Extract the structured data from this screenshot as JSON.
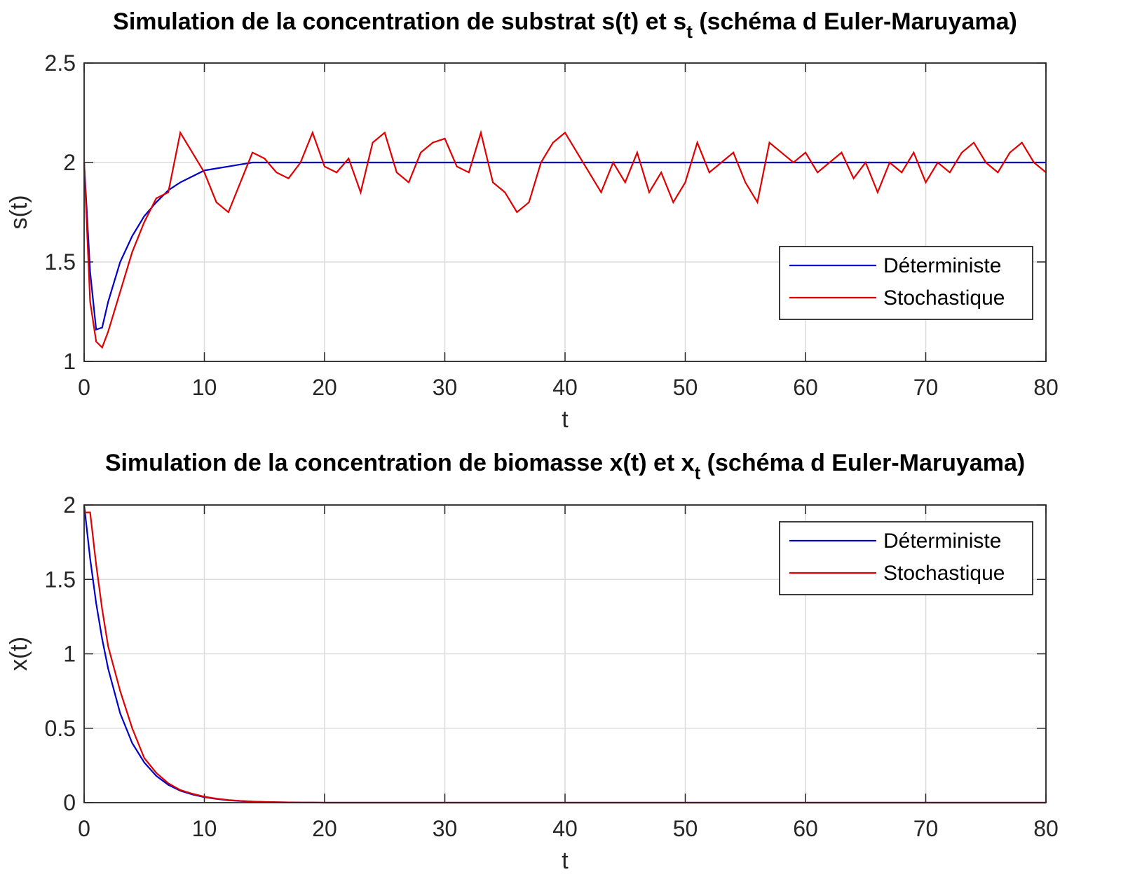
{
  "chart_data": [
    {
      "type": "line",
      "title_parts": [
        "Simulation de la concentration de substrat s(t) et s",
        "t",
        " (schéma d Euler-Maruyama)"
      ],
      "x_label": "t",
      "y_label": "s(t)",
      "x": [
        0,
        0.5,
        1,
        1.5,
        2,
        3,
        4,
        5,
        6,
        7,
        8,
        9,
        10,
        11,
        12,
        13,
        14,
        15,
        16,
        17,
        18,
        19,
        20,
        21,
        22,
        23,
        24,
        25,
        26,
        27,
        28,
        29,
        30,
        31,
        32,
        33,
        34,
        35,
        36,
        37,
        38,
        39,
        40,
        41,
        42,
        43,
        44,
        45,
        46,
        47,
        48,
        49,
        50,
        51,
        52,
        53,
        54,
        55,
        56,
        57,
        58,
        59,
        60,
        61,
        62,
        63,
        64,
        65,
        66,
        67,
        68,
        69,
        70,
        71,
        72,
        73,
        74,
        75,
        76,
        77,
        78,
        79,
        80
      ],
      "series": [
        {
          "name": "Déterministe",
          "color": "#0000cc",
          "values": [
            2,
            1.45,
            1.16,
            1.17,
            1.3,
            1.5,
            1.63,
            1.73,
            1.8,
            1.86,
            1.9,
            1.93,
            1.96,
            1.97,
            1.98,
            1.99,
            2,
            2,
            2,
            2,
            2,
            2,
            2,
            2,
            2,
            2,
            2,
            2,
            2,
            2,
            2,
            2,
            2,
            2,
            2,
            2,
            2,
            2,
            2,
            2,
            2,
            2,
            2,
            2,
            2,
            2,
            2,
            2,
            2,
            2,
            2,
            2,
            2,
            2,
            2,
            2,
            2,
            2,
            2,
            2,
            2,
            2,
            2,
            2,
            2,
            2,
            2,
            2,
            2,
            2,
            2,
            2,
            2,
            2,
            2,
            2,
            2,
            2,
            2,
            2,
            2,
            2,
            2
          ]
        },
        {
          "name": "Stochastique",
          "color": "#e00000",
          "values": [
            2,
            1.3,
            1.1,
            1.07,
            1.15,
            1.35,
            1.55,
            1.7,
            1.82,
            1.85,
            2.15,
            2.05,
            1.95,
            1.8,
            1.75,
            1.9,
            2.05,
            2.02,
            1.95,
            1.92,
            2.0,
            2.15,
            1.98,
            1.95,
            2.02,
            1.85,
            2.1,
            2.15,
            1.95,
            1.9,
            2.05,
            2.1,
            2.12,
            1.98,
            1.95,
            2.15,
            1.9,
            1.85,
            1.75,
            1.8,
            2.0,
            2.1,
            2.15,
            2.05,
            1.95,
            1.85,
            2.0,
            1.9,
            2.05,
            1.85,
            1.95,
            1.8,
            1.9,
            2.1,
            1.95,
            2.0,
            2.05,
            1.9,
            1.8,
            2.1,
            2.05,
            2.0,
            2.05,
            1.95,
            2.0,
            2.05,
            1.92,
            2.0,
            1.85,
            2.0,
            1.95,
            2.05,
            1.9,
            2.0,
            1.95,
            2.05,
            2.1,
            2.0,
            1.95,
            2.05,
            2.1,
            2.0,
            1.95
          ]
        }
      ],
      "xlim": [
        0,
        80
      ],
      "xticks": [
        0,
        10,
        20,
        30,
        40,
        50,
        60,
        70,
        80
      ],
      "ylim": [
        1,
        2.5
      ],
      "yticks": [
        1,
        1.5,
        2,
        2.5
      ],
      "grid": true,
      "legend": "southeast"
    },
    {
      "type": "line",
      "title_parts": [
        "Simulation de la concentration de biomasse x(t) et x",
        "t",
        " (schéma d Euler-Maruyama)"
      ],
      "x_label": "t",
      "y_label": "x(t)",
      "x": [
        0,
        0.5,
        1,
        1.5,
        2,
        3,
        4,
        5,
        6,
        7,
        8,
        9,
        10,
        11,
        12,
        13,
        14,
        15,
        16,
        17,
        18,
        19,
        20,
        21,
        22,
        23,
        24,
        25,
        26,
        27,
        28,
        29,
        30,
        31,
        32,
        33,
        34,
        35,
        36,
        37,
        38,
        39,
        40,
        41,
        42,
        43,
        44,
        45,
        46,
        47,
        48,
        49,
        50,
        51,
        52,
        53,
        54,
        55,
        56,
        57,
        58,
        59,
        60,
        61,
        62,
        63,
        64,
        65,
        66,
        67,
        68,
        69,
        70,
        71,
        72,
        73,
        74,
        75,
        76,
        77,
        78,
        79,
        80
      ],
      "series": [
        {
          "name": "Déterministe",
          "color": "#0000cc",
          "values": [
            2,
            1.64,
            1.34,
            1.1,
            0.9,
            0.6,
            0.4,
            0.27,
            0.18,
            0.12,
            0.08,
            0.055,
            0.037,
            0.025,
            0.016,
            0.011,
            0.007,
            0.005,
            0.003,
            0.002,
            0.001,
            0.001,
            0,
            0,
            0,
            0,
            0,
            0,
            0,
            0,
            0,
            0,
            0,
            0,
            0,
            0,
            0,
            0,
            0,
            0,
            0,
            0,
            0,
            0,
            0,
            0,
            0,
            0,
            0,
            0,
            0,
            0,
            0,
            0,
            0,
            0,
            0,
            0,
            0,
            0,
            0,
            0,
            0,
            0,
            0,
            0,
            0,
            0,
            0,
            0,
            0,
            0,
            0,
            0,
            0,
            0,
            0,
            0,
            0,
            0,
            0,
            0,
            0
          ]
        },
        {
          "name": "Stochastique",
          "color": "#e00000",
          "values": [
            1.95,
            1.95,
            1.6,
            1.3,
            1.05,
            0.75,
            0.5,
            0.3,
            0.2,
            0.13,
            0.085,
            0.06,
            0.04,
            0.027,
            0.018,
            0.012,
            0.008,
            0.005,
            0.003,
            0.002,
            0.001,
            0.001,
            0,
            0,
            0,
            0,
            0,
            0,
            0,
            0,
            0,
            0,
            0,
            0,
            0,
            0,
            0,
            0,
            0,
            0,
            0,
            0,
            0,
            0,
            0,
            0,
            0,
            0,
            0,
            0,
            0,
            0,
            0,
            0,
            0,
            0,
            0,
            0,
            0,
            0,
            0,
            0,
            0,
            0,
            0,
            0,
            0,
            0,
            0,
            0,
            0,
            0,
            0,
            0,
            0,
            0,
            0,
            0,
            0,
            0,
            0,
            0,
            0
          ]
        }
      ],
      "xlim": [
        0,
        80
      ],
      "xticks": [
        0,
        10,
        20,
        30,
        40,
        50,
        60,
        70,
        80
      ],
      "ylim": [
        0,
        2
      ],
      "yticks": [
        0,
        0.5,
        1,
        1.5,
        2
      ],
      "grid": true,
      "legend": "northeast"
    }
  ]
}
